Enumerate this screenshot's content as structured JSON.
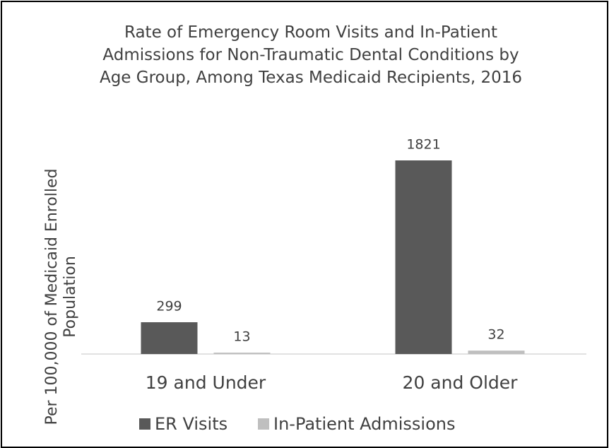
{
  "chart_data": {
    "type": "bar",
    "title": "Rate of Emergency Room Visits and In-Patient Admissions for Non-Traumatic Dental Conditions by Age Group, Among Texas Medicaid Recipients, 2016",
    "y_label": "Per 100,000 of Medicaid Enrolled Population",
    "categories": [
      "19 and Under",
      "20 and Older"
    ],
    "series": [
      {
        "name": "ER Visits",
        "color": "#595959",
        "values": [
          299,
          1821
        ]
      },
      {
        "name": "In-Patient Admissions",
        "color": "#bfbfbf",
        "values": [
          13,
          32
        ]
      }
    ],
    "legend": "bottom"
  }
}
